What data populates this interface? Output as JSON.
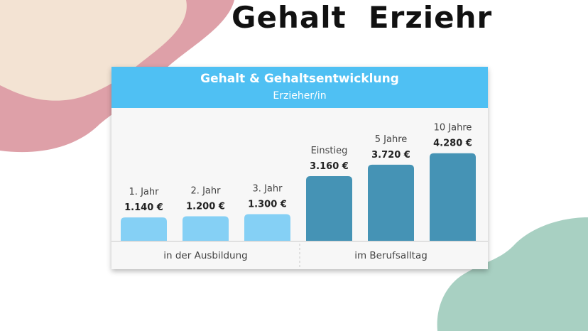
{
  "page_title": "Gehalt  Erziehr",
  "colors": {
    "header": "#4fc0f3",
    "bar_training": "#85d0f5",
    "bar_career": "#4593b5",
    "blob_cream": "#f3e3d3",
    "blob_pink": "#dea0a8",
    "blob_green": "#a8d0c2"
  },
  "chart_data": {
    "type": "bar",
    "title": "Gehalt & Gehaltsentwicklung",
    "subtitle": "Erzieher/in",
    "categories": [
      "1. Jahr",
      "2. Jahr",
      "3. Jahr",
      "Einstieg",
      "5 Jahre",
      "10 Jahre"
    ],
    "values": [
      1140,
      1200,
      1300,
      3160,
      3720,
      4280
    ],
    "value_labels": [
      "1.140 €",
      "1.200 €",
      "1.300 €",
      "3.160 €",
      "3.720 €",
      "4.280 €"
    ],
    "groups": [
      {
        "label": "in der Ausbildung",
        "categories": [
          0,
          1,
          2
        ]
      },
      {
        "label": "im Berufsalltag",
        "categories": [
          3,
          4,
          5
        ]
      }
    ],
    "axis_visible": false,
    "grid": false,
    "legend": "none"
  }
}
